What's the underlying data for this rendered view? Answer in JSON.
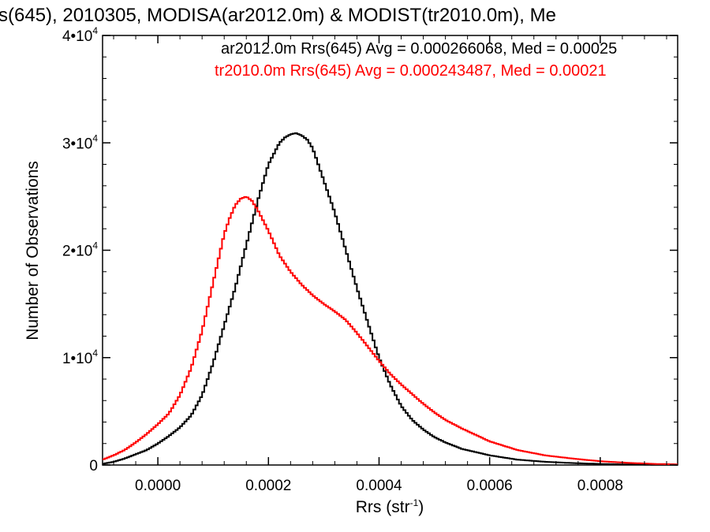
{
  "chart_data": {
    "type": "line",
    "title": "s(645), 2010305, MODISA(ar2012.0m) & MODIST(tr2010.0m), Me",
    "xlabel_base": "Rrs (str",
    "xlabel_sup": "-1",
    "xlabel_close": ")",
    "ylabel": "Number of Observations",
    "xlim": [
      -0.0001,
      0.00094
    ],
    "ylim": [
      0,
      40000
    ],
    "grid": false,
    "x_ticks": [
      {
        "value": 0.0,
        "label": "0.0000"
      },
      {
        "value": 0.0002,
        "label": "0.0002"
      },
      {
        "value": 0.0004,
        "label": "0.0004"
      },
      {
        "value": 0.0006,
        "label": "0.0006"
      },
      {
        "value": 0.0008,
        "label": "0.0008"
      }
    ],
    "y_ticks": [
      {
        "value": 0,
        "mant": "0",
        "exp": ""
      },
      {
        "value": 10000,
        "mant": "1•10",
        "exp": "4"
      },
      {
        "value": 20000,
        "mant": "2•10",
        "exp": "4"
      },
      {
        "value": 30000,
        "mant": "3•10",
        "exp": "4"
      },
      {
        "value": 40000,
        "mant": "4•10",
        "exp": "4"
      }
    ],
    "legend": [
      {
        "text": "ar2012.0m Rrs(645) Avg = 0.000266068, Med = 0.00025",
        "color": "#000000"
      },
      {
        "text": "tr2010.0m Rrs(645) Avg = 0.000243487, Med = 0.00021",
        "color": "#ff0000"
      }
    ],
    "series": [
      {
        "color": "#000000",
        "x": [
          -0.0001,
          -8e-05,
          -6e-05,
          -4e-05,
          -2e-05,
          0.0,
          2e-05,
          4e-05,
          6e-05,
          8e-05,
          0.0001,
          0.00012,
          0.00014,
          0.00016,
          0.00018,
          0.0002,
          0.00021,
          0.00022,
          0.00023,
          0.00024,
          0.00025,
          0.00026,
          0.00027,
          0.00028,
          0.0003,
          0.00032,
          0.00034,
          0.00036,
          0.00038,
          0.0004,
          0.00042,
          0.00044,
          0.00046,
          0.00048,
          0.0005,
          0.00052,
          0.00055,
          0.0006,
          0.00065,
          0.0007,
          0.00075,
          0.0008,
          0.00085,
          0.0009,
          0.00094
        ],
        "y": [
          100,
          300,
          600,
          1000,
          1400,
          2000,
          2700,
          3500,
          4600,
          6500,
          9500,
          13000,
          16500,
          20500,
          24500,
          28000,
          29000,
          30000,
          30500,
          30800,
          30900,
          30700,
          30300,
          29500,
          26500,
          23500,
          20000,
          16500,
          13200,
          10000,
          7500,
          5500,
          4200,
          3300,
          2600,
          2100,
          1500,
          900,
          500,
          300,
          180,
          100,
          50,
          20,
          10
        ]
      },
      {
        "color": "#ff0000",
        "x": [
          -0.0001,
          -8e-05,
          -6e-05,
          -4e-05,
          -2e-05,
          0.0,
          2e-05,
          4e-05,
          6e-05,
          8e-05,
          0.0001,
          0.00012,
          0.00013,
          0.00014,
          0.00015,
          0.00016,
          0.00017,
          0.00018,
          0.00019,
          0.0002,
          0.00022,
          0.00024,
          0.00026,
          0.00028,
          0.0003,
          0.00032,
          0.00034,
          0.00036,
          0.00038,
          0.0004,
          0.00042,
          0.00044,
          0.00046,
          0.00048,
          0.0005,
          0.00052,
          0.00055,
          0.0006,
          0.00065,
          0.0007,
          0.00075,
          0.0008,
          0.00085,
          0.0009,
          0.00094
        ],
        "y": [
          500,
          900,
          1400,
          2100,
          2900,
          3800,
          4800,
          6500,
          9000,
          12500,
          17000,
          21500,
          23000,
          24200,
          24800,
          25000,
          24600,
          23800,
          22800,
          21800,
          19500,
          18000,
          16800,
          15800,
          15000,
          14300,
          13500,
          12300,
          11000,
          9700,
          8500,
          7500,
          6600,
          5700,
          4900,
          4200,
          3400,
          2200,
          1400,
          900,
          600,
          350,
          200,
          100,
          60
        ]
      }
    ]
  }
}
